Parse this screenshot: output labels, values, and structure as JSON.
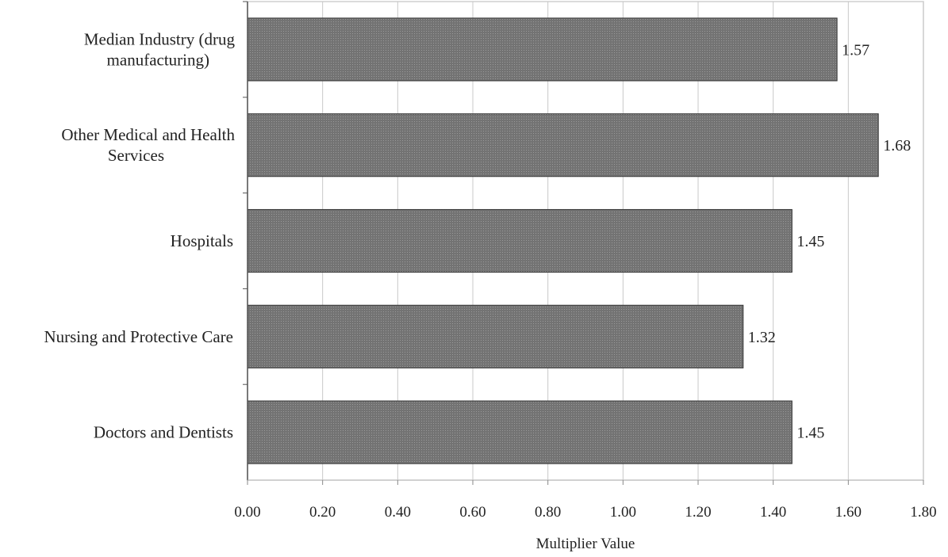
{
  "chart_data": {
    "type": "bar",
    "orientation": "horizontal",
    "title": "",
    "xlabel": "Multiplier Value",
    "ylabel": "",
    "xlim": [
      0,
      1.8
    ],
    "x_ticks": [
      "0.00",
      "0.20",
      "0.40",
      "0.60",
      "0.80",
      "1.00",
      "1.20",
      "1.40",
      "1.60",
      "1.80"
    ],
    "grid": "vertical",
    "categories": [
      [
        "Median Industry (drug",
        "manufacturing)"
      ],
      [
        "Other Medical and Health",
        "Services"
      ],
      [
        "Hospitals"
      ],
      [
        "Nursing and Protective Care"
      ],
      [
        "Doctors and Dentists"
      ]
    ],
    "values": [
      1.57,
      1.68,
      1.45,
      1.32,
      1.45
    ],
    "data_labels": [
      "1.57",
      "1.68",
      "1.45",
      "1.32",
      "1.45"
    ],
    "colors": {
      "bar": "#7a7a7a",
      "bar_edge": "#333333",
      "grid": "#c8c8c8",
      "axis": "#555555"
    }
  }
}
